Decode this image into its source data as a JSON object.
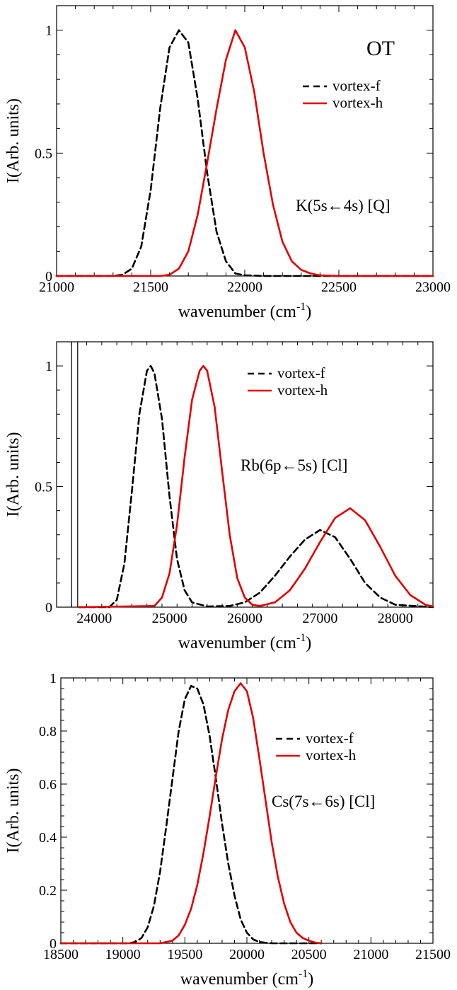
{
  "chart_data": [
    {
      "type": "line",
      "xlabel": "wavenumber (cm",
      "xlabel_sup": "-1",
      "xlabel_close": ")",
      "ylabel": "I(Arb. units)",
      "xlim": [
        21000,
        23000
      ],
      "ylim": [
        0,
        1.1
      ],
      "xticks": [
        "21000",
        "21500",
        "22000",
        "22500",
        "23000"
      ],
      "yticks": [
        "0",
        "0.5",
        "1"
      ],
      "ytick_values": [
        0,
        0.5,
        1
      ],
      "annotations": {
        "corner": "OT",
        "transition": "K(5s←4s) [Q]"
      },
      "legend": [
        "vortex-f",
        "vortex-h"
      ],
      "series": [
        {
          "name": "vortex-f",
          "color": "#000000",
          "style": "dashed",
          "x": [
            21000,
            21300,
            21350,
            21400,
            21450,
            21500,
            21550,
            21600,
            21650,
            21700,
            21750,
            21800,
            21850,
            21900,
            21950,
            22000,
            22100,
            22300,
            23000
          ],
          "y": [
            0,
            0,
            0.005,
            0.03,
            0.12,
            0.35,
            0.68,
            0.93,
            1.0,
            0.95,
            0.72,
            0.42,
            0.18,
            0.06,
            0.01,
            0.003,
            0,
            0,
            0
          ]
        },
        {
          "name": "vortex-h",
          "color": "#e00000",
          "style": "solid",
          "x": [
            21000,
            21550,
            21600,
            21650,
            21700,
            21750,
            21800,
            21850,
            21900,
            21950,
            22000,
            22050,
            22100,
            22150,
            22200,
            22250,
            22300,
            22350,
            22400,
            22500,
            23000
          ],
          "y": [
            0,
            0,
            0.005,
            0.03,
            0.1,
            0.25,
            0.46,
            0.68,
            0.88,
            1.0,
            0.93,
            0.75,
            0.5,
            0.29,
            0.14,
            0.06,
            0.025,
            0.01,
            0.003,
            0,
            0
          ]
        }
      ]
    },
    {
      "type": "line",
      "xlabel": "wavenumber (cm",
      "xlabel_sup": "-1",
      "xlabel_close": ")",
      "ylabel": "I(Arb. units)",
      "xlim": [
        23500,
        28500
      ],
      "ylim": [
        0,
        1.1
      ],
      "xticks": [
        "24000",
        "25000",
        "26000",
        "27000",
        "28000"
      ],
      "yticks": [
        "0",
        "0.5",
        "1"
      ],
      "ytick_values": [
        0,
        0.5,
        1
      ],
      "annotations": {
        "transition": "Rb(6p←5s) [Cl]"
      },
      "legend": [
        "vortex-f",
        "vortex-h"
      ],
      "reference_lines": [
        23700,
        23780
      ],
      "series": [
        {
          "name": "vortex-f",
          "color": "#000000",
          "style": "dashed",
          "x": [
            23800,
            24200,
            24300,
            24400,
            24500,
            24600,
            24700,
            24750,
            24800,
            24900,
            25000,
            25100,
            25200,
            25300,
            25500,
            25800,
            26000,
            26200,
            26400,
            26600,
            26800,
            27000,
            27200,
            27400,
            27600,
            27800,
            28000,
            28500
          ],
          "y": [
            0,
            0,
            0.03,
            0.18,
            0.48,
            0.8,
            0.98,
            1.0,
            0.97,
            0.78,
            0.46,
            0.2,
            0.07,
            0.02,
            0.003,
            0.005,
            0.02,
            0.06,
            0.13,
            0.21,
            0.28,
            0.32,
            0.29,
            0.2,
            0.1,
            0.04,
            0.01,
            0
          ]
        },
        {
          "name": "vortex-h",
          "color": "#e00000",
          "style": "solid",
          "x": [
            23800,
            24800,
            24900,
            25000,
            25100,
            25200,
            25300,
            25400,
            25450,
            25500,
            25600,
            25700,
            25800,
            25900,
            26000,
            26100,
            26200,
            26400,
            26600,
            26800,
            27000,
            27200,
            27400,
            27600,
            27800,
            28000,
            28200,
            28400,
            28500
          ],
          "y": [
            0,
            0.005,
            0.04,
            0.14,
            0.34,
            0.62,
            0.86,
            0.98,
            1.0,
            0.98,
            0.83,
            0.56,
            0.3,
            0.12,
            0.04,
            0.01,
            0.005,
            0.02,
            0.07,
            0.16,
            0.27,
            0.37,
            0.41,
            0.36,
            0.25,
            0.13,
            0.05,
            0.01,
            0.003
          ]
        }
      ]
    },
    {
      "type": "line",
      "xlabel": "wavenumber (cm",
      "xlabel_sup": "-1",
      "xlabel_close": ")",
      "ylabel": "I(Arb. units)",
      "xlim": [
        18500,
        21500
      ],
      "ylim": [
        0,
        1.0
      ],
      "xticks": [
        "18500",
        "19000",
        "19500",
        "20000",
        "20500",
        "21000",
        "21500"
      ],
      "yticks": [
        "0",
        "0.2",
        "0.4",
        "0.6",
        "0.8",
        "1"
      ],
      "ytick_values": [
        0,
        0.2,
        0.4,
        0.6,
        0.8,
        1.0
      ],
      "annotations": {
        "transition": "Cs(7s←6s) [Cl]"
      },
      "legend": [
        "vortex-f",
        "vortex-h"
      ],
      "series": [
        {
          "name": "vortex-f",
          "color": "#000000",
          "style": "dashed",
          "x": [
            18500,
            19050,
            19100,
            19150,
            19200,
            19250,
            19300,
            19350,
            19400,
            19450,
            19500,
            19550,
            19600,
            19650,
            19700,
            19750,
            19800,
            19850,
            19900,
            19950,
            20000,
            20050,
            20100,
            20150,
            20200,
            20300,
            20600
          ],
          "y": [
            0,
            0,
            0.005,
            0.02,
            0.06,
            0.14,
            0.27,
            0.44,
            0.62,
            0.8,
            0.92,
            0.97,
            0.96,
            0.9,
            0.78,
            0.62,
            0.45,
            0.3,
            0.18,
            0.09,
            0.04,
            0.015,
            0.005,
            0.002,
            0,
            0,
            0
          ]
        },
        {
          "name": "vortex-h",
          "color": "#e00000",
          "style": "solid",
          "x": [
            18500,
            19300,
            19400,
            19450,
            19500,
            19550,
            19600,
            19650,
            19700,
            19750,
            19800,
            19850,
            19900,
            19950,
            20000,
            20050,
            20100,
            20150,
            20200,
            20250,
            20300,
            20350,
            20400,
            20450,
            20500,
            20550,
            20600
          ],
          "y": [
            0,
            0,
            0.01,
            0.03,
            0.07,
            0.13,
            0.22,
            0.34,
            0.48,
            0.63,
            0.77,
            0.88,
            0.95,
            0.98,
            0.95,
            0.85,
            0.7,
            0.54,
            0.38,
            0.25,
            0.15,
            0.08,
            0.04,
            0.02,
            0.01,
            0.003,
            0
          ]
        }
      ]
    }
  ]
}
